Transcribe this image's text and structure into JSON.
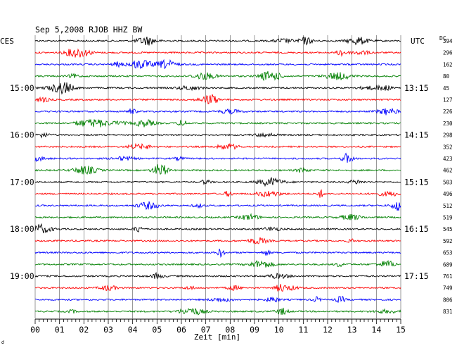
{
  "chart_data": {
    "type": "line",
    "title": "Sep 5,2008   RJOB HHZ BW",
    "left_axis_label": "CES",
    "right_axis_label": "UTC",
    "right_column_header": "DC",
    "xlabel": "Zeit [min]",
    "x_ticks": [
      "00",
      "01",
      "02",
      "03",
      "04",
      "05",
      "06",
      "07",
      "08",
      "09",
      "10",
      "11",
      "12",
      "13",
      "14",
      "15"
    ],
    "xlim": [
      0,
      15
    ],
    "left_hour_labels": [
      {
        "trace": 4,
        "label": "15:00"
      },
      {
        "trace": 8,
        "label": "16:00"
      },
      {
        "trace": 12,
        "label": "17:00"
      },
      {
        "trace": 16,
        "label": "18:00"
      },
      {
        "trace": 20,
        "label": "19:00"
      }
    ],
    "right_time_labels": [
      {
        "trace": 4,
        "label": "13:15"
      },
      {
        "trace": 8,
        "label": "14:15"
      },
      {
        "trace": 12,
        "label": "15:15"
      },
      {
        "trace": 16,
        "label": "16:15"
      },
      {
        "trace": 20,
        "label": "17:15"
      }
    ],
    "trace_colors": [
      "#000000",
      "#ff0000",
      "#0000ff",
      "#008000"
    ],
    "dc_offsets": [
      "394",
      "296",
      "162",
      "80",
      "45",
      "127",
      "226",
      "230",
      "298",
      "352",
      "423",
      "462",
      "503",
      "496",
      "512",
      "519",
      "545",
      "592",
      "653",
      "689",
      "761",
      "749",
      "806",
      "831"
    ],
    "grid": true,
    "grid_interval_min": 1
  }
}
